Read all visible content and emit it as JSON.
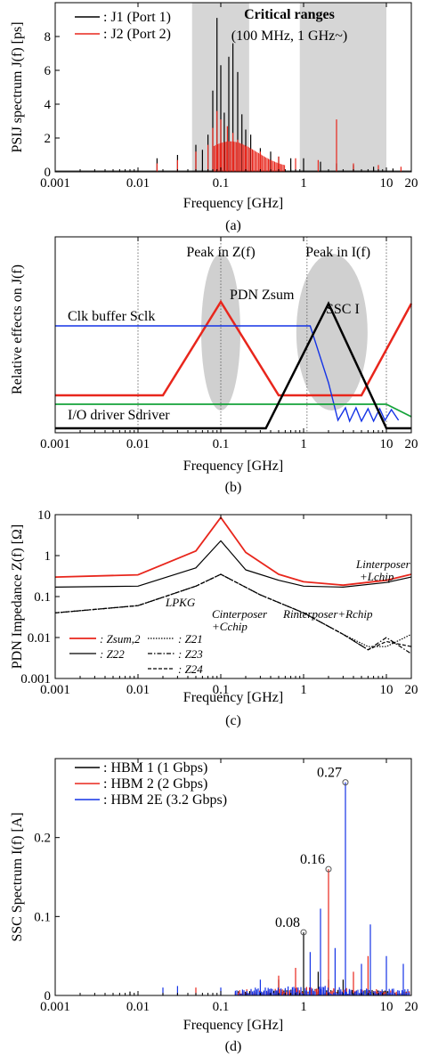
{
  "chart_data": [
    {
      "panel": "a",
      "type": "line",
      "caption": "(a)",
      "xlabel": "Frequency [GHz]",
      "ylabel": "PSIJ spectrum J(f) [ps]",
      "xscale": "log",
      "xlim": [
        0.001,
        20
      ],
      "ylim": [
        0,
        10
      ],
      "xticks": [
        "0.001",
        "0.01",
        "0.1",
        "1",
        "10",
        "20"
      ],
      "yticks": [
        "0",
        "2",
        "4",
        "6",
        "8"
      ],
      "shaded_ranges": [
        [
          0.045,
          0.22
        ],
        [
          0.9,
          10
        ]
      ],
      "annotation_title": "Critical ranges",
      "annotation_sub": "(100 MHz, 1 GHz~)",
      "series": [
        {
          "name": ": J1 (Port 1)",
          "color": "#000000",
          "peaks": [
            [
              0.017,
              0.8
            ],
            [
              0.03,
              1.0
            ],
            [
              0.05,
              1.6
            ],
            [
              0.06,
              1.3
            ],
            [
              0.07,
              2.2
            ],
            [
              0.08,
              4.8
            ],
            [
              0.09,
              9.1
            ],
            [
              0.1,
              6.3
            ],
            [
              0.11,
              3.5
            ],
            [
              0.125,
              6.8
            ],
            [
              0.14,
              7.6
            ],
            [
              0.16,
              5.9
            ],
            [
              0.18,
              3.4
            ],
            [
              0.2,
              2.5
            ],
            [
              0.23,
              2.2
            ],
            [
              0.3,
              1.4
            ],
            [
              0.4,
              1.2
            ],
            [
              0.5,
              0.9
            ],
            [
              0.7,
              0.8
            ],
            [
              1.0,
              0.8
            ],
            [
              1.6,
              0.6
            ],
            [
              2.5,
              0.5
            ],
            [
              4.0,
              0.4
            ],
            [
              7.0,
              0.3
            ],
            [
              12.0,
              0.2
            ]
          ]
        },
        {
          "name": ": J2 (Port 2)",
          "color": "#e8261c",
          "peaks": [
            [
              0.017,
              0.5
            ],
            [
              0.03,
              0.7
            ],
            [
              0.05,
              1.2
            ],
            [
              0.07,
              1.6
            ],
            [
              0.08,
              2.6
            ],
            [
              0.09,
              3.6
            ],
            [
              0.1,
              3.1
            ],
            [
              0.12,
              2.7
            ],
            [
              0.14,
              2.3
            ],
            [
              0.16,
              1.9
            ],
            [
              0.2,
              1.5
            ],
            [
              0.3,
              1.2
            ],
            [
              0.5,
              0.9
            ],
            [
              0.8,
              0.8
            ],
            [
              1.5,
              0.7
            ],
            [
              2.5,
              3.1
            ],
            [
              4.0,
              0.5
            ],
            [
              8.0,
              0.4
            ],
            [
              15.0,
              0.3
            ]
          ]
        }
      ]
    },
    {
      "panel": "b",
      "type": "line",
      "caption": "(b)",
      "xlabel": "Frequency [GHz]",
      "ylabel": "Relative effects on J(f)",
      "xscale": "log",
      "xlim": [
        0.001,
        20
      ],
      "xticks": [
        "0.001",
        "0.01",
        "0.1",
        "1",
        "10",
        "20"
      ],
      "header_left": "Peak in Z(f)",
      "header_right": "Peak in I(f)",
      "label_pdn": "PDN Zsum",
      "label_ssc": "SSC I",
      "label_clk": "Clk buffer Sclk",
      "label_io": "I/O driver Sdriver"
    },
    {
      "panel": "c",
      "type": "line",
      "caption": "(c)",
      "xlabel": "Frequency [GHz]",
      "ylabel": "PDN Impedance Z(f) [Ω]",
      "xscale": "log",
      "yscale": "log",
      "xlim": [
        0.001,
        20
      ],
      "ylim": [
        0.001,
        10
      ],
      "xticks": [
        "0.001",
        "0.01",
        "0.1",
        "1",
        "10",
        "20"
      ],
      "yticks": [
        "0.001",
        "0.01",
        "0.1",
        "1",
        "10"
      ],
      "annotations": [
        "LPKG",
        "Cinterposer",
        "+Cchip",
        "Rinterposer+Rchip",
        "Linterposer",
        "+Lchip"
      ],
      "series": [
        {
          "name": ": Zsum,2",
          "color": "#e8261c",
          "points": [
            [
              0.001,
              0.3
            ],
            [
              0.01,
              0.34
            ],
            [
              0.05,
              1.3
            ],
            [
              0.1,
              8.5
            ],
            [
              0.2,
              1.2
            ],
            [
              0.5,
              0.35
            ],
            [
              1,
              0.23
            ],
            [
              3,
              0.19
            ],
            [
              10,
              0.25
            ],
            [
              20,
              0.35
            ]
          ]
        },
        {
          "name": ": Z22",
          "color": "#000000",
          "points": [
            [
              0.001,
              0.17
            ],
            [
              0.01,
              0.18
            ],
            [
              0.05,
              0.5
            ],
            [
              0.1,
              2.3
            ],
            [
              0.2,
              0.45
            ],
            [
              0.5,
              0.25
            ],
            [
              1,
              0.18
            ],
            [
              3,
              0.17
            ],
            [
              10,
              0.22
            ],
            [
              20,
              0.3
            ]
          ]
        },
        {
          "name": ": Z21",
          "color": "#000000",
          "points": [
            [
              0.001,
              0.04
            ],
            [
              0.01,
              0.06
            ],
            [
              0.05,
              0.18
            ],
            [
              0.1,
              0.35
            ],
            [
              0.3,
              0.11
            ],
            [
              1,
              0.04
            ],
            [
              3,
              0.012
            ],
            [
              6,
              0.006
            ],
            [
              10,
              0.006
            ],
            [
              20,
              0.012
            ]
          ]
        },
        {
          "name": ": Z23",
          "color": "#000000",
          "points": [
            [
              0.001,
              0.04
            ],
            [
              0.01,
              0.06
            ],
            [
              0.05,
              0.18
            ],
            [
              0.1,
              0.35
            ],
            [
              0.3,
              0.11
            ],
            [
              1,
              0.04
            ],
            [
              3,
              0.012
            ],
            [
              6,
              0.005
            ],
            [
              10,
              0.01
            ],
            [
              20,
              0.004
            ]
          ]
        },
        {
          "name": ": Z24",
          "color": "#000000",
          "points": [
            [
              0.001,
              0.04
            ],
            [
              0.01,
              0.06
            ],
            [
              0.05,
              0.18
            ],
            [
              0.1,
              0.35
            ],
            [
              0.3,
              0.11
            ],
            [
              1,
              0.04
            ],
            [
              3,
              0.012
            ],
            [
              6,
              0.005
            ],
            [
              10,
              0.008
            ],
            [
              20,
              0.006
            ]
          ]
        }
      ]
    },
    {
      "panel": "d",
      "type": "line",
      "caption": "(d)",
      "xlabel": "Frequency [GHz]",
      "ylabel": "SSC Spectrum I(f) [A]",
      "xscale": "log",
      "xlim": [
        0.001,
        20
      ],
      "ylim": [
        0,
        0.3
      ],
      "xticks": [
        "0.001",
        "0.01",
        "0.1",
        "1",
        "10",
        "20"
      ],
      "yticks": [
        "0",
        "0.1",
        "0.2"
      ],
      "series": [
        {
          "name": ": HBM 1 (1 Gbps)",
          "color": "#000000",
          "peaks": [
            [
              0.008,
              0.005
            ],
            [
              0.5,
              0.02
            ],
            [
              1.0,
              0.08
            ],
            [
              1.5,
              0.03
            ],
            [
              2.0,
              0.02
            ],
            [
              3.0,
              0.02
            ]
          ]
        },
        {
          "name": ": HBM 2 (2 Gbps)",
          "color": "#e8261c",
          "peaks": [
            [
              0.05,
              0.01
            ],
            [
              0.5,
              0.025
            ],
            [
              0.8,
              0.035
            ],
            [
              2.0,
              0.16
            ],
            [
              4.0,
              0.03
            ],
            [
              6.0,
              0.05
            ]
          ]
        },
        {
          "name": ": HBM 2E (3.2 Gbps)",
          "color": "#1433e6",
          "peaks": [
            [
              0.02,
              0.01
            ],
            [
              0.03,
              0.012
            ],
            [
              0.1,
              0.01
            ],
            [
              0.3,
              0.02
            ],
            [
              1.2,
              0.055
            ],
            [
              1.6,
              0.11
            ],
            [
              2.4,
              0.06
            ],
            [
              3.2,
              0.27
            ],
            [
              5.0,
              0.04
            ],
            [
              6.4,
              0.09
            ],
            [
              10,
              0.05
            ],
            [
              16,
              0.04
            ]
          ]
        }
      ],
      "markers": [
        {
          "x": 1.0,
          "y": 0.08,
          "label": "0.08"
        },
        {
          "x": 2.0,
          "y": 0.16,
          "label": "0.16"
        },
        {
          "x": 3.2,
          "y": 0.27,
          "label": "0.27"
        }
      ]
    }
  ]
}
